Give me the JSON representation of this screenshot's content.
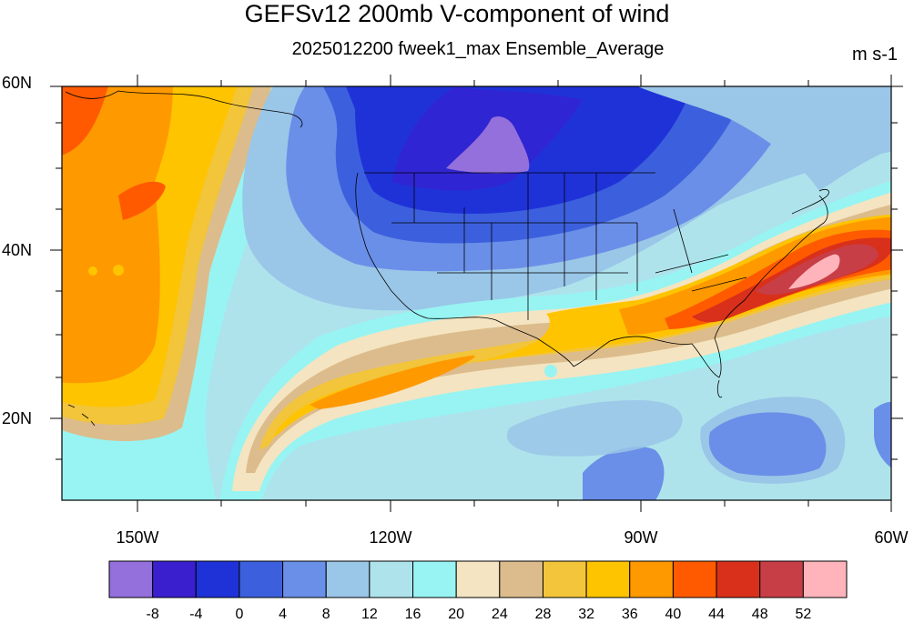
{
  "title": "GEFSv12 200mb V-component of wind",
  "subtitle": "2025012200 fweek1_max Ensemble_Average",
  "units": "m s-1",
  "lat_labels": [
    "60N",
    "40N",
    "20N"
  ],
  "lon_labels": [
    "150W",
    "120W",
    "90W",
    "60W"
  ],
  "colorbar": {
    "colors": [
      "#9370db",
      "#3a1fcf",
      "#1f32d8",
      "#3c60dd",
      "#6a8fe8",
      "#9ac6e8",
      "#aee3ec",
      "#97f4f2",
      "#f4e4c1",
      "#dcbc8c",
      "#f2c53a",
      "#ffc400",
      "#ff9900",
      "#ff5a00",
      "#d9301b",
      "#c83e46",
      "#ffb4bb"
    ],
    "labels": [
      "-8",
      "-4",
      "0",
      "4",
      "8",
      "12",
      "16",
      "20",
      "24",
      "28",
      "32",
      "36",
      "40",
      "44",
      "48",
      "52"
    ]
  }
}
